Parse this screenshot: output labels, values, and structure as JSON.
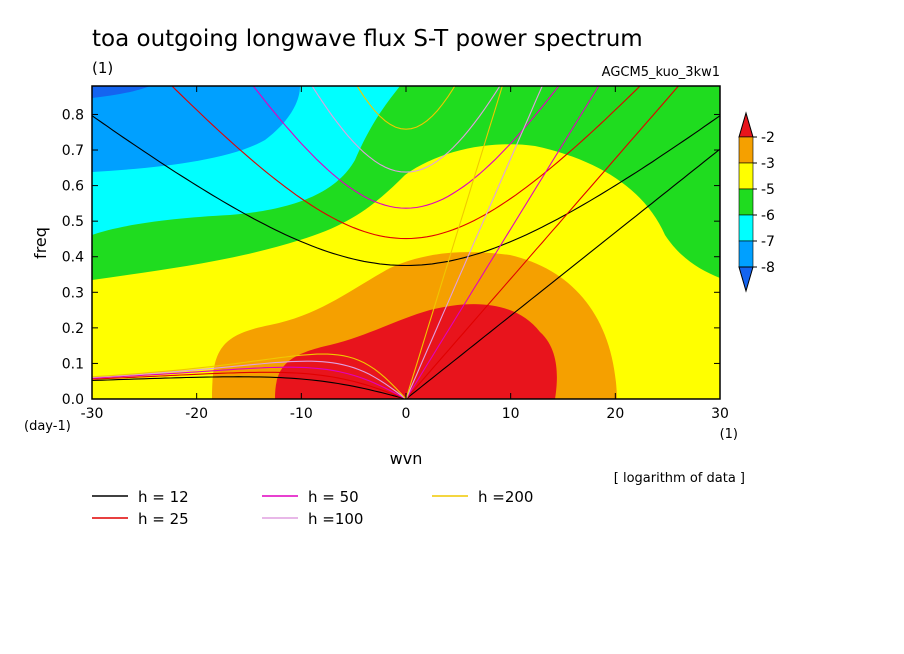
{
  "chart_data": {
    "type": "heatmap",
    "title": "toa outgoing longwave flux S-T power spectrum",
    "subtitle_left": "(1)",
    "subtitle_right": "AGCM5_kuo_3kw1",
    "xlabel": "wvn",
    "ylabel": "freq",
    "x_unit": "(1)",
    "y_unit": "(day-1)",
    "xlim": [
      -30,
      30
    ],
    "ylim": [
      0,
      0.88
    ],
    "xticks": [
      "-30",
      "-20",
      "-10",
      "0",
      "10",
      "20",
      "30"
    ],
    "yticks": [
      "0.0",
      "0.1",
      "0.2",
      "0.3",
      "0.4",
      "0.5",
      "0.6",
      "0.7",
      "0.8"
    ],
    "note": "[ logarithm of data ]",
    "colorbar": {
      "labels": [
        "-2",
        "-3",
        "-5",
        "-6",
        "-7",
        "-8"
      ],
      "colors": [
        "#e8141c",
        "#f5a000",
        "#ffff00",
        "#1fdc1f",
        "#00ffff",
        "#00a0ff",
        "#1464f0"
      ]
    },
    "dispersion_curves": [
      {
        "label": "h = 12",
        "color": "#000000",
        "h": 12
      },
      {
        "label": "h = 25",
        "color": "#e00000",
        "h": 25
      },
      {
        "label": "h = 50",
        "color": "#e000c0",
        "h": 50
      },
      {
        "label": "h =100",
        "color": "#e0a0e0",
        "h": 100
      },
      {
        "label": "h =200",
        "color": "#f0c800",
        "h": 200
      }
    ]
  }
}
